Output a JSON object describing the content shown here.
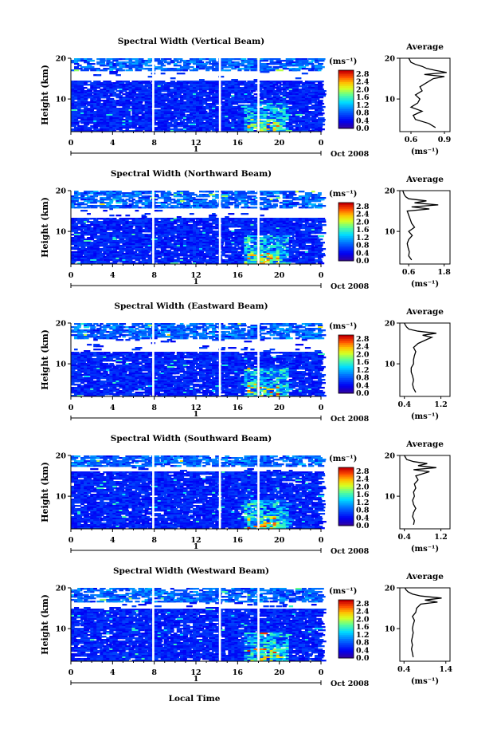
{
  "figure": {
    "bottom_label": "Local Time",
    "day_label": "1",
    "date_label": "Oct 2008"
  },
  "chart_data": [
    {
      "type": "heatmap",
      "title": "Spectral Width (Vertical Beam)",
      "ylabel": "Height (km)",
      "xlabel": "Local Time",
      "xlim": [
        0,
        24
      ],
      "ylim": [
        2,
        20
      ],
      "x_ticks": [
        "0",
        "4",
        "8",
        "12",
        "16",
        "20",
        "0"
      ],
      "y_ticks": [
        "10",
        "20"
      ],
      "colorbar": {
        "unit": "(ms⁻¹)",
        "ticks": [
          "0.0",
          "0.4",
          "0.8",
          "1.2",
          "1.6",
          "2.0",
          "2.4",
          "2.8"
        ],
        "range": [
          0,
          3.0
        ]
      },
      "data_gaps_hours": [
        [
          7.8,
          8.0
        ],
        [
          14.2,
          14.4
        ],
        [
          17.9,
          18.1
        ]
      ],
      "blank_band_km": [
        14.5,
        16.8
      ],
      "profile": {
        "title": "Average",
        "xunit": "(ms⁻¹)",
        "x_ticks": [
          "0.6",
          "0.9"
        ],
        "xlim": [
          0.5,
          0.95
        ],
        "y_ticks": [
          "10",
          "20"
        ],
        "heights": [
          3,
          4,
          5,
          6,
          7,
          8,
          9,
          10,
          11,
          12,
          13,
          14,
          15,
          15.5,
          16,
          16.5,
          17,
          17.5,
          18,
          18.5,
          19,
          20
        ],
        "values": [
          0.82,
          0.76,
          0.64,
          0.62,
          0.7,
          0.6,
          0.66,
          0.68,
          0.64,
          0.7,
          0.68,
          0.74,
          0.8,
          0.9,
          0.72,
          0.92,
          0.82,
          0.74,
          0.7,
          0.64,
          0.6,
          0.58
        ]
      }
    },
    {
      "type": "heatmap",
      "title": "Spectral Width (Northward Beam)",
      "ylabel": "Height (km)",
      "xlabel": "Local Time",
      "xlim": [
        0,
        24
      ],
      "ylim": [
        2,
        20
      ],
      "x_ticks": [
        "0",
        "4",
        "8",
        "12",
        "16",
        "20",
        "0"
      ],
      "y_ticks": [
        "10",
        "20"
      ],
      "colorbar": {
        "unit": "(ms⁻¹)",
        "ticks": [
          "0.0",
          "0.4",
          "0.8",
          "1.2",
          "1.6",
          "2.0",
          "2.4",
          "2.8"
        ],
        "range": [
          0,
          3.0
        ]
      },
      "data_gaps_hours": [
        [
          7.8,
          8.0
        ],
        [
          14.2,
          14.4
        ],
        [
          17.9,
          18.1
        ]
      ],
      "blank_band_km": [
        13.3,
        15.6
      ],
      "profile": {
        "title": "Average",
        "xunit": "(ms⁻¹)",
        "x_ticks": [
          "0.6",
          "1.8"
        ],
        "xlim": [
          0.3,
          2.0
        ],
        "y_ticks": [
          "10",
          "20"
        ],
        "heights": [
          3,
          4,
          5,
          6,
          7,
          8,
          9,
          10,
          11,
          12,
          13,
          14,
          15,
          15.5,
          16,
          16.5,
          17,
          17.5,
          18,
          18.5,
          19,
          20
        ],
        "values": [
          0.7,
          0.6,
          0.62,
          0.58,
          0.55,
          0.6,
          0.72,
          0.6,
          0.8,
          0.7,
          0.65,
          0.6,
          0.55,
          1.3,
          0.7,
          1.6,
          0.8,
          1.2,
          0.6,
          0.5,
          0.45,
          0.4
        ]
      }
    },
    {
      "type": "heatmap",
      "title": "Spectral Width (Eastward Beam)",
      "ylabel": "Height (km)",
      "xlabel": "Local Time",
      "xlim": [
        0,
        24
      ],
      "ylim": [
        2,
        20
      ],
      "x_ticks": [
        "0",
        "4",
        "8",
        "12",
        "16",
        "20",
        "0"
      ],
      "y_ticks": [
        "10",
        "20"
      ],
      "colorbar": {
        "unit": "(ms⁻¹)",
        "ticks": [
          "0.0",
          "0.4",
          "0.8",
          "1.2",
          "1.6",
          "2.0",
          "2.4",
          "2.8"
        ],
        "range": [
          0,
          3.0
        ]
      },
      "data_gaps_hours": [
        [
          7.8,
          8.0
        ],
        [
          14.2,
          14.4
        ],
        [
          17.9,
          18.1
        ]
      ],
      "blank_band_km": [
        13.0,
        16.0
      ],
      "profile": {
        "title": "Average",
        "xunit": "(ms⁻¹)",
        "x_ticks": [
          "0.4",
          "1.2"
        ],
        "xlim": [
          0.3,
          1.4
        ],
        "y_ticks": [
          "10",
          "20"
        ],
        "heights": [
          3,
          4,
          5,
          6,
          7,
          8,
          9,
          10,
          11,
          12,
          13,
          14,
          15,
          16,
          16.5,
          17,
          17.5,
          18,
          18.5,
          19,
          19.5,
          20
        ],
        "values": [
          0.65,
          0.6,
          0.58,
          0.6,
          0.58,
          0.55,
          0.55,
          0.6,
          0.6,
          0.62,
          0.65,
          0.6,
          0.7,
          0.9,
          1.0,
          0.8,
          1.1,
          0.7,
          0.5,
          0.45,
          0.42,
          0.4
        ]
      }
    },
    {
      "type": "heatmap",
      "title": "Spectral Width (Southward Beam)",
      "ylabel": "Height (km)",
      "xlabel": "Local Time",
      "xlim": [
        0,
        24
      ],
      "ylim": [
        2,
        20
      ],
      "x_ticks": [
        "0",
        "4",
        "8",
        "12",
        "16",
        "20",
        "0"
      ],
      "y_ticks": [
        "10",
        "20"
      ],
      "colorbar": {
        "unit": "(ms⁻¹)",
        "ticks": [
          "0.0",
          "0.4",
          "0.8",
          "1.2",
          "1.6",
          "2.0",
          "2.4",
          "2.8"
        ],
        "range": [
          0,
          3.0
        ]
      },
      "data_gaps_hours": [
        [
          7.8,
          8.0
        ],
        [
          14.2,
          14.4
        ],
        [
          17.9,
          18.1
        ]
      ],
      "blank_band_km": [
        16.0,
        17.2
      ],
      "profile": {
        "title": "Average",
        "xunit": "(ms⁻¹)",
        "x_ticks": [
          "0.4",
          "1.2"
        ],
        "xlim": [
          0.3,
          1.4
        ],
        "y_ticks": [
          "10",
          "20"
        ],
        "heights": [
          3,
          4,
          5,
          6,
          7,
          8,
          9,
          10,
          11,
          12,
          13,
          14,
          15,
          15.5,
          16,
          16.5,
          17,
          17.5,
          18,
          18.5,
          19,
          20
        ],
        "values": [
          0.6,
          0.62,
          0.58,
          0.6,
          0.65,
          0.6,
          0.58,
          0.62,
          0.6,
          0.65,
          0.62,
          0.7,
          0.65,
          0.8,
          0.95,
          0.6,
          1.1,
          0.7,
          0.9,
          0.6,
          0.45,
          0.4
        ]
      }
    },
    {
      "type": "heatmap",
      "title": "Spectral Width (Westward Beam)",
      "ylabel": "Height (km)",
      "xlabel": "Local Time",
      "xlim": [
        0,
        24
      ],
      "ylim": [
        2,
        20
      ],
      "x_ticks": [
        "0",
        "4",
        "8",
        "12",
        "16",
        "20",
        "0"
      ],
      "y_ticks": [
        "10",
        "20"
      ],
      "colorbar": {
        "unit": "(ms⁻¹)",
        "ticks": [
          "0.0",
          "0.4",
          "0.8",
          "1.2",
          "1.6",
          "2.0",
          "2.4",
          "2.8"
        ],
        "range": [
          0,
          3.0
        ]
      },
      "data_gaps_hours": [
        [
          7.8,
          8.0
        ],
        [
          14.2,
          14.4
        ],
        [
          17.9,
          18.1
        ]
      ],
      "blank_band_km": [
        15.0,
        16.4
      ],
      "profile": {
        "title": "Average",
        "xunit": "(ms⁻¹)",
        "x_ticks": [
          "0.4",
          "1.4"
        ],
        "xlim": [
          0.3,
          1.5
        ],
        "y_ticks": [
          "10",
          "20"
        ],
        "heights": [
          3,
          4,
          5,
          6,
          7,
          8,
          9,
          10,
          11,
          12,
          13,
          14,
          15,
          16,
          16.5,
          17,
          17.5,
          18,
          18.5,
          19,
          19.5,
          20
        ],
        "values": [
          0.62,
          0.6,
          0.58,
          0.6,
          0.58,
          0.6,
          0.62,
          0.6,
          0.62,
          0.65,
          0.6,
          0.68,
          0.7,
          0.8,
          1.2,
          0.9,
          1.3,
          0.8,
          0.6,
          0.5,
          0.45,
          0.42
        ]
      }
    }
  ]
}
